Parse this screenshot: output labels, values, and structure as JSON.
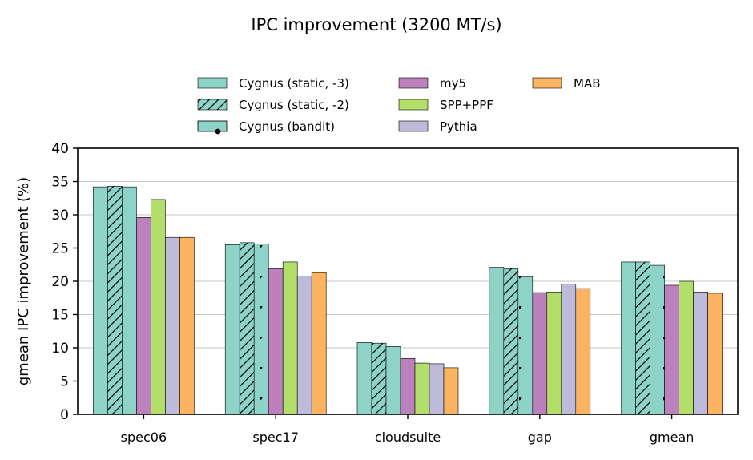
{
  "chart_data": {
    "type": "bar",
    "title": "IPC improvement (3200 MT/s)",
    "xlabel": "",
    "ylabel": "gmean IPC improvement (%)",
    "ylim": [
      0,
      40
    ],
    "yticks": [
      0,
      5,
      10,
      15,
      20,
      25,
      30,
      35,
      40
    ],
    "grid": "horizontal",
    "legend_position": "top",
    "categories": [
      "spec06",
      "spec17",
      "cloudsuite",
      "gap",
      "gmean"
    ],
    "series": [
      {
        "name": "Cygnus (static, -3)",
        "color": "#8dd3c7",
        "pattern": "none",
        "values": [
          34.2,
          25.5,
          10.8,
          22.1,
          22.9
        ]
      },
      {
        "name": "Cygnus (static, -2)",
        "color": "#8dd3c7",
        "pattern": "hatch",
        "values": [
          34.3,
          25.8,
          10.7,
          21.9,
          22.9
        ]
      },
      {
        "name": "Cygnus (bandit)",
        "color": "#8dd3c7",
        "pattern": "dots",
        "values": [
          34.2,
          25.6,
          10.2,
          20.7,
          22.4
        ]
      },
      {
        "name": "my5",
        "color": "#bc80bd",
        "pattern": "none",
        "values": [
          29.6,
          21.9,
          8.4,
          18.3,
          19.4
        ]
      },
      {
        "name": "SPP+PPF",
        "color": "#b3de69",
        "pattern": "none",
        "values": [
          32.3,
          22.9,
          7.7,
          18.4,
          20.0
        ]
      },
      {
        "name": "Pythia",
        "color": "#bebada",
        "pattern": "none",
        "values": [
          26.6,
          20.8,
          7.6,
          19.6,
          18.4
        ]
      },
      {
        "name": "MAB",
        "color": "#fdb462",
        "pattern": "none",
        "values": [
          26.6,
          21.3,
          7.0,
          18.9,
          18.2
        ]
      }
    ]
  }
}
